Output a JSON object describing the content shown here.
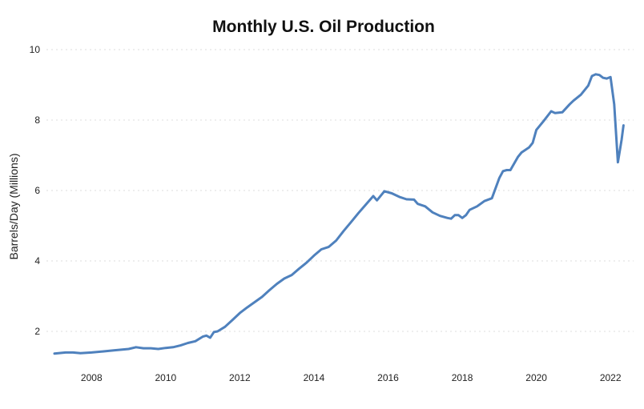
{
  "chart_data": {
    "type": "line",
    "title": "Monthly U.S. Oil Production",
    "xlabel": "",
    "ylabel": "Barrels/Day (Millions)",
    "xlim": [
      2007.0,
      2022.45
    ],
    "ylim": [
      1.0,
      10.0
    ],
    "x_ticks": [
      2008,
      2010,
      2012,
      2014,
      2016,
      2018,
      2020,
      2022
    ],
    "y_ticks": [
      2,
      4,
      6,
      8,
      10
    ],
    "grid": true,
    "line_color": "#4f81bd",
    "series": [
      {
        "points": [
          [
            2007.0,
            1.37
          ],
          [
            2007.3,
            1.4
          ],
          [
            2007.5,
            1.4
          ],
          [
            2007.7,
            1.38
          ],
          [
            2008.0,
            1.4
          ],
          [
            2008.3,
            1.43
          ],
          [
            2008.6,
            1.46
          ],
          [
            2008.8,
            1.48
          ],
          [
            2009.0,
            1.5
          ],
          [
            2009.2,
            1.55
          ],
          [
            2009.4,
            1.52
          ],
          [
            2009.6,
            1.52
          ],
          [
            2009.8,
            1.5
          ],
          [
            2010.0,
            1.53
          ],
          [
            2010.2,
            1.55
          ],
          [
            2010.4,
            1.6
          ],
          [
            2010.6,
            1.67
          ],
          [
            2010.8,
            1.72
          ],
          [
            2011.0,
            1.85
          ],
          [
            2011.1,
            1.88
          ],
          [
            2011.2,
            1.82
          ],
          [
            2011.3,
            1.98
          ],
          [
            2011.4,
            2.0
          ],
          [
            2011.6,
            2.13
          ],
          [
            2011.8,
            2.32
          ],
          [
            2012.0,
            2.52
          ],
          [
            2012.2,
            2.68
          ],
          [
            2012.4,
            2.83
          ],
          [
            2012.6,
            2.98
          ],
          [
            2012.8,
            3.17
          ],
          [
            2013.0,
            3.35
          ],
          [
            2013.2,
            3.5
          ],
          [
            2013.4,
            3.6
          ],
          [
            2013.6,
            3.78
          ],
          [
            2013.8,
            3.95
          ],
          [
            2014.0,
            4.15
          ],
          [
            2014.2,
            4.33
          ],
          [
            2014.4,
            4.4
          ],
          [
            2014.6,
            4.58
          ],
          [
            2014.8,
            4.85
          ],
          [
            2015.0,
            5.1
          ],
          [
            2015.2,
            5.36
          ],
          [
            2015.4,
            5.6
          ],
          [
            2015.6,
            5.84
          ],
          [
            2015.7,
            5.72
          ],
          [
            2015.9,
            5.98
          ],
          [
            2016.1,
            5.92
          ],
          [
            2016.3,
            5.82
          ],
          [
            2016.5,
            5.75
          ],
          [
            2016.7,
            5.74
          ],
          [
            2016.8,
            5.62
          ],
          [
            2017.0,
            5.55
          ],
          [
            2017.2,
            5.38
          ],
          [
            2017.4,
            5.28
          ],
          [
            2017.6,
            5.22
          ],
          [
            2017.7,
            5.2
          ],
          [
            2017.8,
            5.3
          ],
          [
            2017.9,
            5.3
          ],
          [
            2018.0,
            5.22
          ],
          [
            2018.1,
            5.3
          ],
          [
            2018.2,
            5.45
          ],
          [
            2018.4,
            5.55
          ],
          [
            2018.6,
            5.7
          ],
          [
            2018.8,
            5.78
          ],
          [
            2019.0,
            6.35
          ],
          [
            2019.1,
            6.55
          ],
          [
            2019.2,
            6.58
          ],
          [
            2019.3,
            6.58
          ],
          [
            2019.5,
            6.95
          ],
          [
            2019.6,
            7.08
          ],
          [
            2019.8,
            7.22
          ],
          [
            2019.9,
            7.35
          ],
          [
            2020.0,
            7.72
          ],
          [
            2020.2,
            7.98
          ],
          [
            2020.4,
            8.25
          ],
          [
            2020.5,
            8.2
          ],
          [
            2020.7,
            8.22
          ],
          [
            2020.9,
            8.45
          ],
          [
            2021.0,
            8.55
          ],
          [
            2021.2,
            8.72
          ],
          [
            2021.4,
            8.98
          ],
          [
            2021.5,
            9.25
          ],
          [
            2021.6,
            9.3
          ],
          [
            2021.7,
            9.28
          ],
          [
            2021.8,
            9.2
          ],
          [
            2021.9,
            9.18
          ],
          [
            2022.0,
            9.22
          ],
          [
            2022.1,
            8.45
          ],
          [
            2022.2,
            6.8
          ],
          [
            2022.3,
            7.45
          ],
          [
            2022.35,
            7.85
          ]
        ]
      }
    ]
  }
}
